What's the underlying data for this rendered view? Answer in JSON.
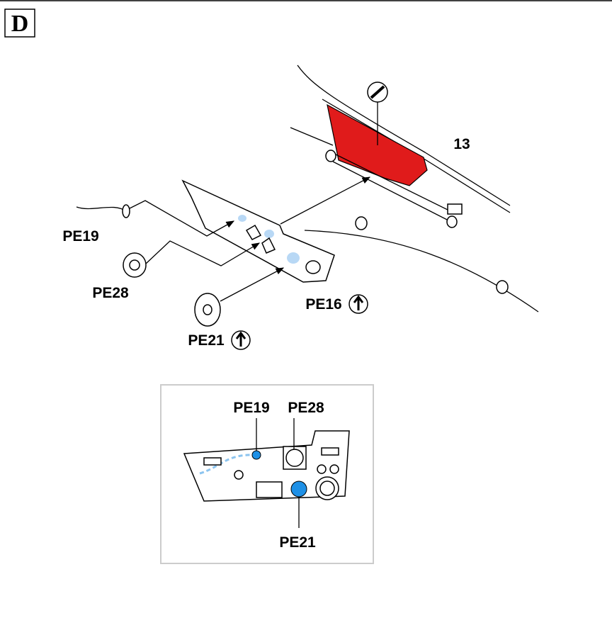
{
  "header": {
    "label": "D"
  },
  "main_view": {
    "part_number": "13",
    "labels": [
      "PE19",
      "PE28",
      "PE16",
      "PE21"
    ]
  },
  "inset": {
    "labels": [
      "PE19",
      "PE28",
      "PE21"
    ]
  }
}
